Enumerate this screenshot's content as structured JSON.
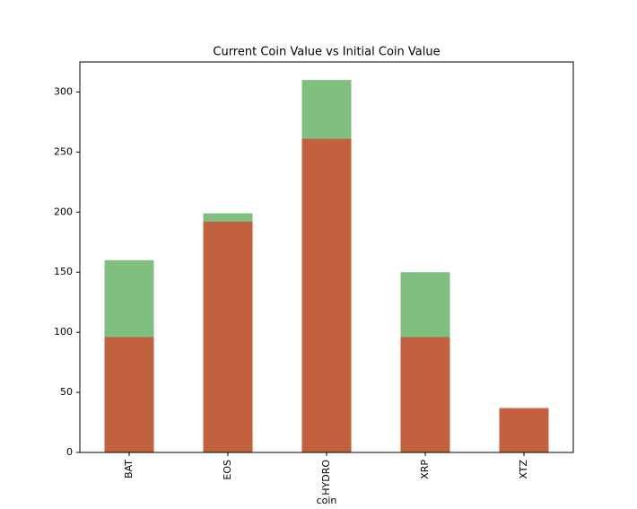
{
  "chart_data": {
    "type": "bar",
    "title": "Current Coin Value vs Initial Coin Value",
    "x_label": "coin",
    "categories": [
      "BAT",
      "EOS",
      "HYDRO",
      "XRP",
      "XTZ"
    ],
    "series": [
      {
        "color": "#008000",
        "values": [
          160,
          199,
          310,
          150,
          36
        ]
      },
      {
        "color": "#cd5032",
        "values": [
          96,
          192,
          261,
          96,
          37
        ]
      }
    ],
    "ylim": [
      0,
      325
    ],
    "yticks": [
      0,
      50,
      100,
      150,
      200,
      250,
      300
    ]
  }
}
